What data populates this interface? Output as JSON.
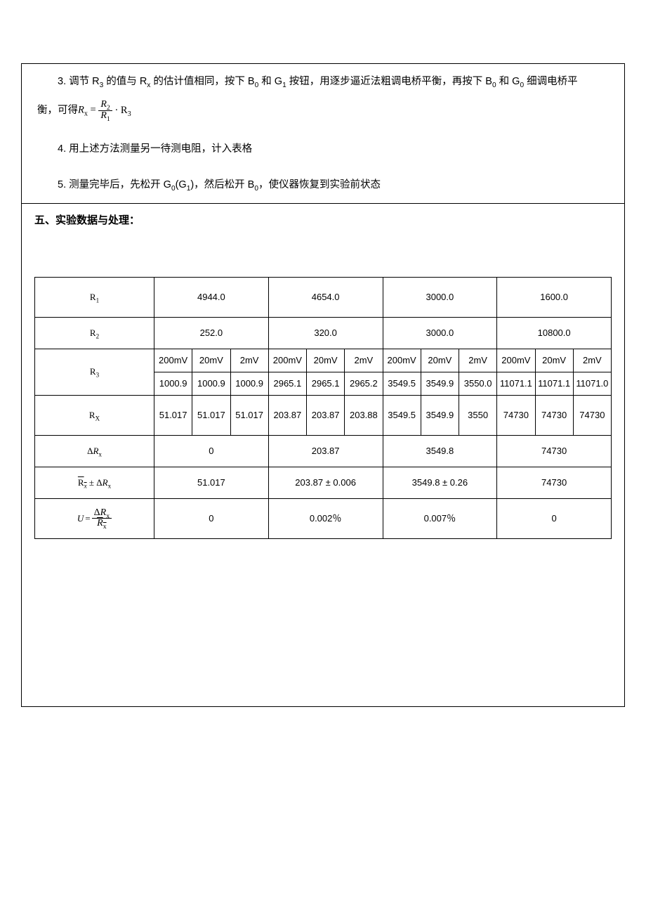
{
  "paragraphs": {
    "p3a": "3. 调节 R",
    "p3a_sub": "3",
    "p3b": " 的值与 R",
    "p3b_sub": "x",
    "p3c": " 的估计值相同，按下 B",
    "p3c_sub": "0",
    "p3d": " 和 G",
    "p3d_sub": "1",
    "p3e": " 按钮，用逐步逼近法粗调电桥平衡，再按下 B",
    "p3e_sub": "0",
    "p3f": " 和 G",
    "p3f_sub": "0",
    "p3g": " 细调电桥平",
    "p3h": "衡，可得 ",
    "eq_lhs": "R",
    "eq_lhs_sub": "x",
    "eq_eq": " = ",
    "eq_num": "R",
    "eq_num_sub": "2",
    "eq_den": "R",
    "eq_den_sub": "1",
    "eq_rhs": " · R",
    "eq_rhs_sub": "3",
    "p4": "4. 用上述方法测量另一待测电阻，计入表格",
    "p5a": "5. 测量完毕后，先松开 G",
    "p5a_sub": "0",
    "p5b": "(G",
    "p5b_sub": "1",
    "p5c": ")，然后松开 B",
    "p5c_sub": "0",
    "p5d": "，使仪器恢复到实验前状态"
  },
  "section_title": "五、实验数据与处理：",
  "table": {
    "row_labels": {
      "r1": "R",
      "r1_sub": "1",
      "r2": "R",
      "r2_sub": "2",
      "r3": "R",
      "r3_sub": "3",
      "rx": "R",
      "rx_sub": "X",
      "drx_var": "R",
      "drx_sub": "x",
      "rxbar_a": "R",
      "rxbar_a_sub": "x",
      "rxbar_pm": " ± Δ",
      "rxbar_b": "R",
      "rxbar_b_sub": "x",
      "u_lhs": "U",
      "u_eq": " = ",
      "u_num_delta": "Δ",
      "u_num_var": "R",
      "u_num_sub": "x",
      "u_den_bar": "R",
      "u_den_sub": "x"
    },
    "r1_vals": [
      "4944.0",
      "4654.0",
      "3000.0",
      "1600.0"
    ],
    "r2_vals": [
      "252.0",
      "320.0",
      "3000.0",
      "10800.0"
    ],
    "r3_headers": [
      "200mV",
      "20mV",
      "2mV",
      "200mV",
      "20mV",
      "2mV",
      "200mV",
      "20mV",
      "2mV",
      "200mV",
      "20mV",
      "2mV"
    ],
    "r3_vals": [
      "1000.9",
      "1000.9",
      "1000.9",
      "2965.1",
      "2965.1",
      "2965.2",
      "3549.5",
      "3549.9",
      "3550.0",
      "11071.1",
      "11071.1",
      "11071.0"
    ],
    "rx_vals": [
      "51.017",
      "51.017",
      "51.017",
      "203.87",
      "203.87",
      "203.88",
      "3549.5",
      "3549.9",
      "3550",
      "74730",
      "74730",
      "74730"
    ],
    "drx_vals": [
      "0",
      "203.87",
      "3549.8",
      "74730"
    ],
    "rxbar_vals": [
      "51.017",
      "203.87 ± 0.006",
      "3549.8 ± 0.26",
      "74730"
    ],
    "u_vals": [
      "0",
      "0.002％",
      "0.007％",
      "0"
    ],
    "colors": {
      "border": "#000000",
      "text": "#000000",
      "bg": "#ffffff"
    },
    "font_sizes": {
      "body": 14.5,
      "table_cell": 13,
      "small_cell": 11
    }
  }
}
